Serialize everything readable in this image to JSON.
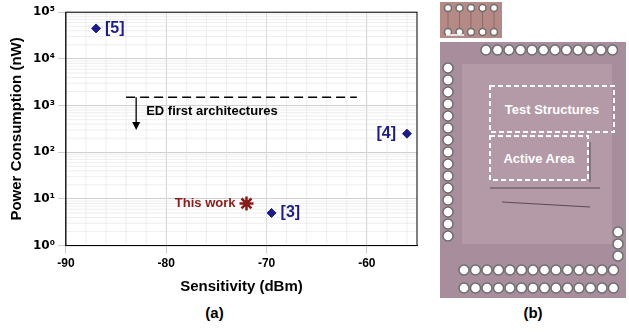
{
  "chart_data": {
    "type": "scatter",
    "x_label": "Sensitivity (dBm)",
    "y_label": "Power Consumption (nW)",
    "log": "y",
    "grid": true,
    "xlim": [
      -90,
      -55
    ],
    "xticks": [
      -90,
      -80,
      -70,
      -60
    ],
    "ylim": [
      1,
      100000
    ],
    "yticks": [
      {
        "value": 1,
        "label": "10⁰"
      },
      {
        "value": 10,
        "label": "10¹"
      },
      {
        "value": 100,
        "label": "10²"
      },
      {
        "value": 1000,
        "label": "10³"
      },
      {
        "value": 10000,
        "label": "10⁴"
      },
      {
        "value": 100000,
        "label": "10⁵"
      }
    ],
    "points": [
      {
        "label": "[5]",
        "x": -87,
        "y": 45000,
        "color": "#1c1c8c",
        "marker": "diamond"
      },
      {
        "label": "This work",
        "x": -72,
        "y": 8,
        "color": "#8b1a1a",
        "marker": "star"
      },
      {
        "label": "[3]",
        "x": -69.5,
        "y": 5,
        "color": "#1c1c8c",
        "marker": "diamond"
      },
      {
        "label": "[4]",
        "x": -56,
        "y": 250,
        "color": "#1c1c8c",
        "marker": "diamond"
      }
    ],
    "annotation": {
      "text": "ED first architectures",
      "line_style": "dashed",
      "y": 1500,
      "x": [
        -84,
        -61
      ],
      "arrow_x": -83,
      "arrow_to": 300
    },
    "caption": "(a)"
  },
  "figure_b": {
    "caption": "(b)",
    "regions": [
      "Test Structures",
      "Active Area"
    ]
  }
}
